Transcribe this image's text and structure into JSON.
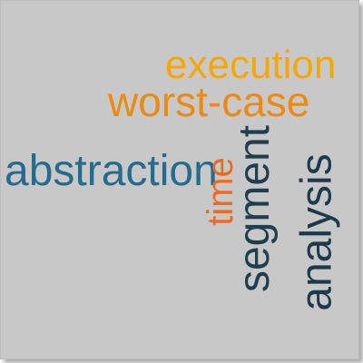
{
  "cloud": {
    "words": {
      "execution": {
        "text": "execution",
        "color": "#f5a800"
      },
      "worst_case": {
        "text": "worst-case",
        "color": "#ec8a12"
      },
      "abstraction": {
        "text": "abstraction",
        "color": "#256b8d"
      },
      "time": {
        "text": "time",
        "color": "#ef6a1d"
      },
      "segment": {
        "text": "segment",
        "color": "#1f3e4f"
      },
      "analysis": {
        "text": "analysis",
        "color": "#1b3a4c"
      }
    },
    "background_color": "#c8c8c8"
  }
}
